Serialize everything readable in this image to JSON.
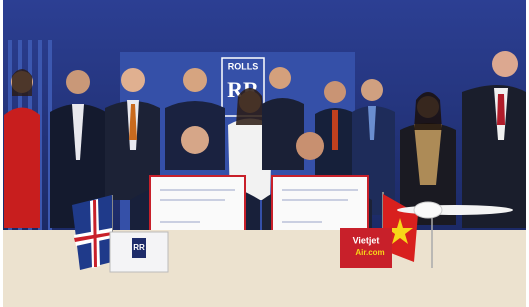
{
  "scene": {
    "backdrop_logo": {
      "word": "ROLLS",
      "mark": "RR"
    },
    "nameplate_left": {
      "mark": "RR"
    },
    "nameplate_right": {
      "line1": "Vietjet",
      "line2": "Air.com"
    }
  }
}
